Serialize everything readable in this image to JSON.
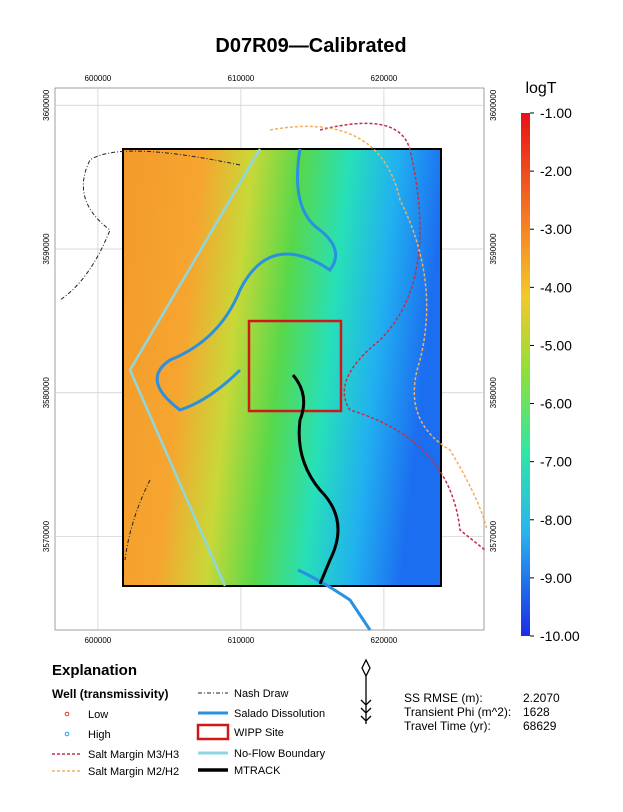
{
  "title": "D07R09—Calibrated",
  "map": {
    "xlim": [
      597000,
      627000
    ],
    "ylim": [
      3563500,
      3601200
    ],
    "xticks": [
      600000,
      610000,
      620000
    ],
    "yticks": [
      3570000,
      3580000,
      3590000,
      3600000
    ]
  },
  "colorbar": {
    "title": "logT",
    "lim": [
      -10,
      -1
    ],
    "ticks": [
      {
        "value": -1,
        "label": "-1.00"
      },
      {
        "value": -2,
        "label": "-2.00"
      },
      {
        "value": -3,
        "label": "-3.00"
      },
      {
        "value": -4,
        "label": "-4.00"
      },
      {
        "value": -5,
        "label": "-5.00"
      },
      {
        "value": -6,
        "label": "-6.00"
      },
      {
        "value": -7,
        "label": "-7.00"
      },
      {
        "value": -8,
        "label": "-8.00"
      },
      {
        "value": -9,
        "label": "-9.00"
      },
      {
        "value": -10,
        "label": "-10.00"
      }
    ]
  },
  "explanation": {
    "title": "Explanation",
    "well_title": "Well (transmissivity)",
    "low": "Low",
    "high": "High",
    "salt_m3": "Salt Margin M3/H3",
    "salt_m2": "Salt Margin M2/H2",
    "nash": "Nash Draw",
    "salado": "Salado Dissolution",
    "wipp": "WIPP Site",
    "noflow": "No-Flow Boundary",
    "mtrack": "MTRACK"
  },
  "stats": {
    "rows": [
      [
        "SS RMSE (m):",
        "2.2070"
      ],
      [
        "Transient Phi (m^2):",
        "1628"
      ],
      [
        "Travel Time (yr):",
        "68629"
      ]
    ]
  }
}
